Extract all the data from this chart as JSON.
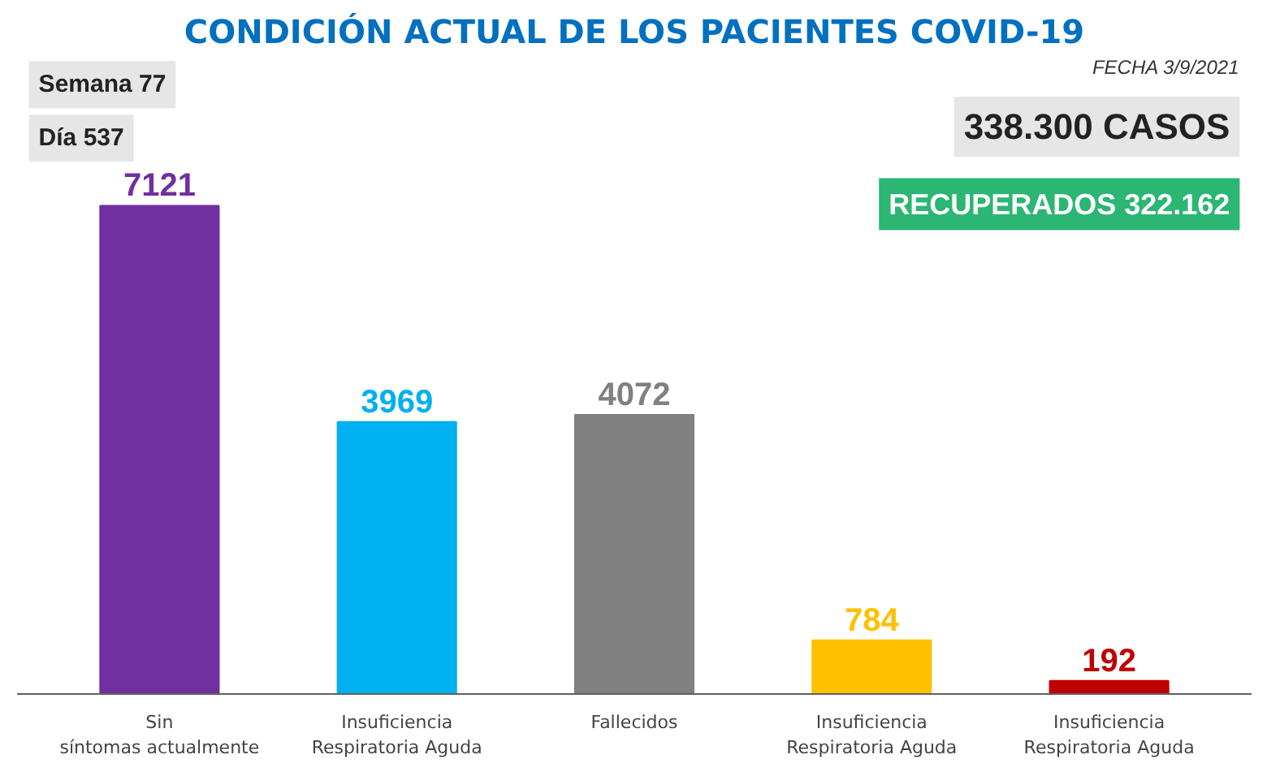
{
  "chart_data": {
    "type": "bar",
    "title": "CONDICIÓN ACTUAL DE LOS PACIENTES COVID-19",
    "categories": [
      "Sin síntomas actualmente",
      "Insuficiencia Respiratoria Aguda",
      "Fallecidos",
      "Insuficiencia Respiratoria Aguda",
      "Insuficiencia Respiratoria Aguda"
    ],
    "values": [
      7121,
      3969,
      4072,
      784,
      192
    ],
    "colors": [
      "#7030a0",
      "#00b0f0",
      "#808080",
      "#ffc000",
      "#c00000"
    ],
    "data_labels": true,
    "grid": false,
    "annotations": [
      "FECHA 3/9/2021",
      "Semana 77",
      "Día 537",
      "338.300 CASOS",
      "RECUPERADOS 322.162"
    ]
  }
}
